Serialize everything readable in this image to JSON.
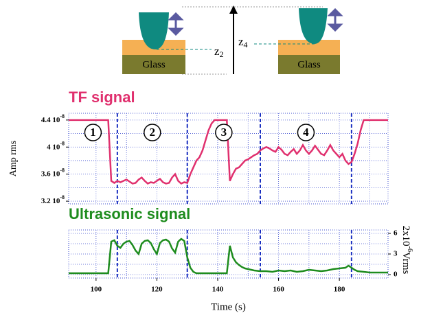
{
  "diagram": {
    "glass_left": "Glass",
    "glass_right": "Glass",
    "z_left": "z",
    "z_left_sub": "2",
    "z_right": "z",
    "z_right_sub": "4"
  },
  "chart_data": [
    {
      "type": "line",
      "title": "TF signal",
      "y_label": "Amp rms",
      "color": "#e0306e",
      "xlim": [
        91,
        196
      ],
      "ylim": [
        3.16e-08,
        4.5e-08
      ],
      "yticks": [
        {
          "value": 3.2e-08,
          "label": "3.2 10",
          "exp": "-8"
        },
        {
          "value": 3.6e-08,
          "label": "3.6 10",
          "exp": "-8"
        },
        {
          "value": 4e-08,
          "label": "4 10",
          "exp": "-8"
        },
        {
          "value": 4.4e-08,
          "label": "4.4 10",
          "exp": "-8"
        }
      ],
      "xgrid": [
        100,
        110,
        120,
        130,
        140,
        150,
        160,
        170,
        180,
        190
      ],
      "ygrid": [
        3.2e-08,
        3.4e-08,
        3.6e-08,
        3.8e-08,
        4e-08,
        4.2e-08,
        4.4e-08
      ],
      "vlines": [
        107,
        130,
        154,
        184
      ],
      "annotations": [
        "1",
        "2",
        "3",
        "4"
      ],
      "x": [
        91,
        104,
        105,
        106,
        107,
        108,
        109,
        110,
        111,
        112,
        113,
        114,
        115,
        116,
        117,
        118,
        119,
        120,
        121,
        122,
        123,
        124,
        125,
        126,
        127,
        128,
        129,
        130,
        131,
        132,
        133,
        134,
        135,
        136,
        137,
        138,
        139,
        143,
        144,
        145,
        146,
        147,
        148,
        149,
        150,
        151,
        152,
        153,
        154,
        155,
        156,
        157,
        158,
        159,
        160,
        161,
        162,
        163,
        164,
        165,
        166,
        167,
        168,
        169,
        170,
        171,
        172,
        173,
        174,
        175,
        176,
        177,
        178,
        179,
        180,
        181,
        182,
        183,
        184,
        185,
        186,
        187,
        188,
        196
      ],
      "values": [
        4.4e-08,
        4.4e-08,
        3.5e-08,
        3.47e-08,
        3.5e-08,
        3.48e-08,
        3.5e-08,
        3.52e-08,
        3.49e-08,
        3.46e-08,
        3.47e-08,
        3.52e-08,
        3.55e-08,
        3.5e-08,
        3.46e-08,
        3.48e-08,
        3.47e-08,
        3.5e-08,
        3.53e-08,
        3.48e-08,
        3.46e-08,
        3.47e-08,
        3.55e-08,
        3.6e-08,
        3.5e-08,
        3.46e-08,
        3.48e-08,
        3.47e-08,
        3.6e-08,
        3.7e-08,
        3.8e-08,
        3.85e-08,
        3.95e-08,
        4.1e-08,
        4.25e-08,
        4.35e-08,
        4.4e-08,
        4.4e-08,
        3.5e-08,
        3.6e-08,
        3.68e-08,
        3.7e-08,
        3.75e-08,
        3.8e-08,
        3.82e-08,
        3.85e-08,
        3.88e-08,
        3.9e-08,
        3.95e-08,
        3.98e-08,
        4e-08,
        3.98e-08,
        3.95e-08,
        3.93e-08,
        4e-08,
        3.96e-08,
        3.9e-08,
        3.88e-08,
        3.93e-08,
        3.97e-08,
        3.9e-08,
        3.95e-08,
        4.03e-08,
        3.95e-08,
        3.9e-08,
        3.95e-08,
        4.02e-08,
        3.96e-08,
        3.9e-08,
        3.88e-08,
        3.95e-08,
        4.03e-08,
        3.95e-08,
        3.9e-08,
        3.85e-08,
        3.9e-08,
        3.8e-08,
        3.75e-08,
        3.78e-08,
        3.9e-08,
        4.05e-08,
        4.25e-08,
        4.4e-08,
        4.4e-08
      ]
    },
    {
      "type": "line",
      "title": "Ultrasonic signal",
      "y_label": "2x10",
      "y_label_exp": "-6",
      "y_label_unit": "Vrms",
      "x_label": "Time (s)",
      "color": "#1e8c1e",
      "xlim": [
        91,
        196
      ],
      "ylim": [
        -0.5,
        6.5
      ],
      "xticks": [
        100,
        120,
        140,
        160,
        180
      ],
      "yticks": [
        0,
        3,
        6
      ],
      "xgrid": [
        100,
        110,
        120,
        130,
        140,
        150,
        160,
        170,
        180,
        190
      ],
      "ygrid": [
        0,
        1.5,
        3,
        4.5,
        6
      ],
      "vlines": [
        107,
        130,
        154,
        184
      ],
      "x": [
        91,
        104,
        105,
        106,
        107,
        108,
        109,
        110,
        111,
        112,
        113,
        114,
        115,
        116,
        117,
        118,
        119,
        120,
        121,
        122,
        123,
        124,
        125,
        126,
        127,
        128,
        129,
        130,
        131,
        132,
        133,
        143,
        144,
        145,
        146,
        147,
        148,
        149,
        150,
        152,
        154,
        156,
        158,
        160,
        162,
        164,
        166,
        168,
        170,
        172,
        174,
        176,
        178,
        180,
        182,
        183,
        184,
        185,
        186,
        188,
        190,
        192,
        194,
        196
      ],
      "values": [
        0.2,
        0.2,
        4.8,
        5,
        4.2,
        3.9,
        4.5,
        4.8,
        4.9,
        4.3,
        3.5,
        3,
        4.5,
        4.9,
        5,
        4.6,
        3.7,
        3,
        4.6,
        5,
        5.1,
        4.8,
        3.8,
        3.2,
        4.8,
        5.2,
        4.9,
        2.5,
        1,
        0.4,
        0.2,
        0.2,
        4.2,
        2.5,
        1.8,
        1.4,
        1.1,
        0.9,
        0.8,
        0.6,
        0.5,
        0.5,
        0.4,
        0.6,
        0.5,
        0.6,
        0.4,
        0.5,
        0.7,
        0.6,
        0.5,
        0.6,
        0.8,
        0.9,
        1,
        1.3,
        1,
        0.7,
        0.5,
        0.4,
        0.3,
        0.3,
        0.3,
        0.3
      ]
    }
  ]
}
